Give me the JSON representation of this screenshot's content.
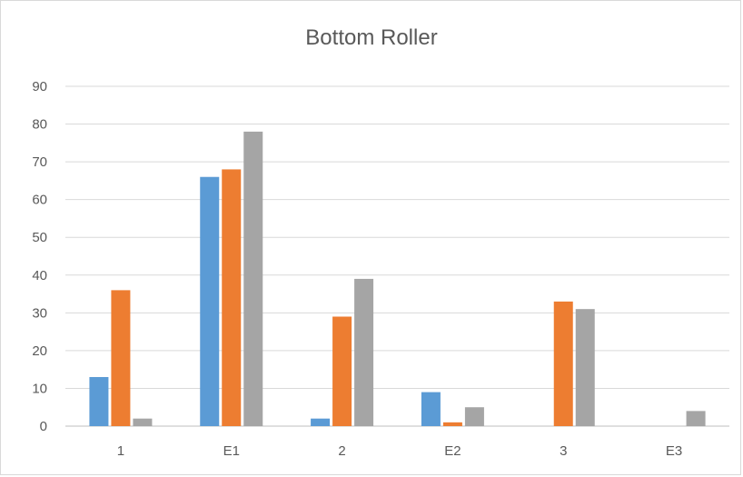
{
  "chart_data": {
    "type": "bar",
    "title": "Bottom Roller",
    "xlabel": "",
    "ylabel": "",
    "categories": [
      "1",
      "E1",
      "2",
      "E2",
      "3",
      "E3"
    ],
    "series": [
      {
        "values": [
          13,
          66,
          2,
          9,
          0,
          0
        ]
      },
      {
        "values": [
          36,
          68,
          29,
          1,
          33,
          0
        ]
      },
      {
        "values": [
          2,
          78,
          39,
          5,
          31,
          4
        ]
      }
    ],
    "ylim": [
      0,
      90
    ],
    "yticks": [
      "0",
      "10",
      "20",
      "30",
      "40",
      "50",
      "60",
      "70",
      "80",
      "90"
    ],
    "grid": true,
    "legend": "none",
    "colors": [
      "#5b9bd5",
      "#ed7d31",
      "#a5a5a5"
    ]
  }
}
